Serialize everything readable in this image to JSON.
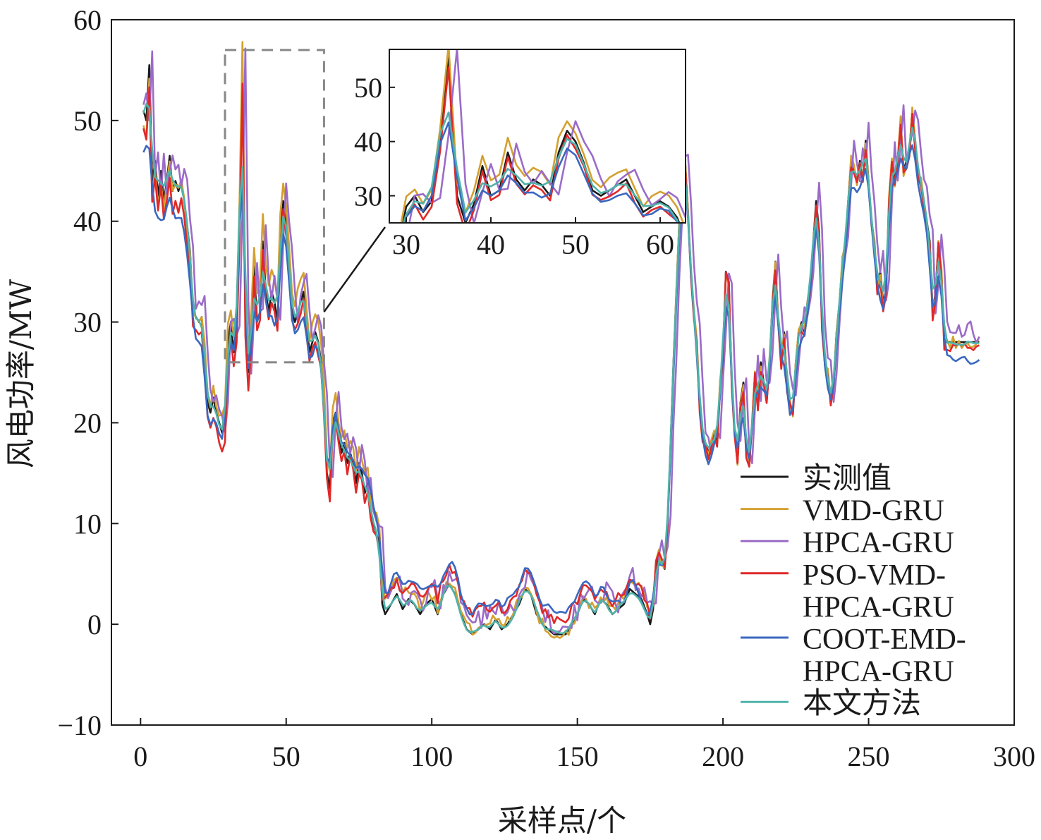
{
  "chart_data": {
    "type": "line",
    "xlabel": "采样点/个",
    "ylabel": "风电功率/MW",
    "xlim": [
      -10,
      300
    ],
    "ylim": [
      -10,
      60
    ],
    "xticks": [
      0,
      50,
      100,
      150,
      200,
      250,
      300
    ],
    "xtick_labels": [
      "0",
      "50",
      "100",
      "150",
      "200",
      "250",
      "300"
    ],
    "yticks": [
      -10,
      0,
      10,
      20,
      30,
      40,
      50,
      60
    ],
    "ytick_labels": [
      "−10",
      "0",
      "10",
      "20",
      "30",
      "40",
      "50",
      "60"
    ],
    "grid": false,
    "legend_position": "lower-right",
    "zoom_region": {
      "x": [
        29,
        63
      ],
      "y": [
        26,
        57
      ]
    },
    "inset": {
      "xlim": [
        28,
        63
      ],
      "ylim": [
        25,
        57
      ],
      "xticks": [
        30,
        40,
        50,
        60
      ],
      "xtick_labels": [
        "30",
        "40",
        "50",
        "60"
      ],
      "yticks": [
        30,
        40,
        50
      ],
      "ytick_labels": [
        "30",
        "40",
        "50"
      ]
    },
    "x_start": 1,
    "x_end": 288,
    "measured": [
      [
        1,
        51
      ],
      [
        2,
        50
      ],
      [
        3,
        55.5
      ],
      [
        4,
        44
      ],
      [
        5,
        46
      ],
      [
        6,
        42.5
      ],
      [
        7,
        45
      ],
      [
        8,
        42
      ],
      [
        9,
        44
      ],
      [
        10,
        46.5
      ],
      [
        11,
        43
      ],
      [
        12,
        44
      ],
      [
        13,
        43
      ],
      [
        14,
        44
      ],
      [
        15,
        42
      ],
      [
        17,
        37
      ],
      [
        18,
        31
      ],
      [
        20,
        30
      ],
      [
        21,
        30.5
      ],
      [
        22,
        27
      ],
      [
        23,
        22
      ],
      [
        24,
        21
      ],
      [
        25,
        22.5
      ],
      [
        26,
        21
      ],
      [
        27,
        20
      ],
      [
        28,
        19
      ],
      [
        29,
        20
      ],
      [
        30,
        28
      ],
      [
        31,
        30
      ],
      [
        32,
        27
      ],
      [
        33,
        29
      ],
      [
        34,
        40
      ],
      [
        35,
        55.5
      ],
      [
        36,
        30
      ],
      [
        37,
        25
      ],
      [
        38,
        28.5
      ],
      [
        39,
        35.5
      ],
      [
        40,
        30
      ],
      [
        41,
        31
      ],
      [
        42,
        38
      ],
      [
        43,
        33
      ],
      [
        44,
        31
      ],
      [
        45,
        33
      ],
      [
        46,
        32
      ],
      [
        47,
        30
      ],
      [
        48,
        38
      ],
      [
        49,
        42
      ],
      [
        50,
        40
      ],
      [
        51,
        36
      ],
      [
        52,
        31
      ],
      [
        53,
        30
      ],
      [
        54,
        31
      ],
      [
        55,
        32
      ],
      [
        56,
        33
      ],
      [
        57,
        30
      ],
      [
        58,
        27
      ],
      [
        59,
        28
      ],
      [
        60,
        29
      ],
      [
        61,
        28
      ],
      [
        62,
        26
      ],
      [
        63,
        22
      ],
      [
        64,
        15
      ],
      [
        65,
        13.5
      ],
      [
        66,
        20
      ],
      [
        67,
        21
      ],
      [
        68,
        19
      ],
      [
        69,
        17
      ],
      [
        70,
        18
      ],
      [
        71,
        16
      ],
      [
        72,
        17
      ],
      [
        73,
        16
      ],
      [
        74,
        14
      ],
      [
        75,
        16
      ],
      [
        76,
        15
      ],
      [
        77,
        13
      ],
      [
        78,
        14
      ],
      [
        79,
        11
      ],
      [
        80,
        10
      ],
      [
        82,
        8
      ],
      [
        83,
        2
      ],
      [
        84,
        1
      ],
      [
        86,
        2
      ],
      [
        88,
        3
      ],
      [
        90,
        1.5
      ],
      [
        92,
        2.5
      ],
      [
        94,
        2
      ],
      [
        96,
        1
      ],
      [
        98,
        2
      ],
      [
        100,
        2.5
      ],
      [
        102,
        1
      ],
      [
        104,
        3
      ],
      [
        106,
        4
      ],
      [
        108,
        3
      ],
      [
        110,
        1
      ],
      [
        112,
        -0.5
      ],
      [
        114,
        -1
      ],
      [
        116,
        -0.5
      ],
      [
        118,
        0
      ],
      [
        120,
        -0.5
      ],
      [
        122,
        0.5
      ],
      [
        124,
        -0.5
      ],
      [
        126,
        0
      ],
      [
        128,
        1
      ],
      [
        130,
        2
      ],
      [
        132,
        3.5
      ],
      [
        134,
        3
      ],
      [
        136,
        1
      ],
      [
        138,
        0
      ],
      [
        140,
        -0.5
      ],
      [
        142,
        -1
      ],
      [
        144,
        -1
      ],
      [
        146,
        -1
      ],
      [
        148,
        0
      ],
      [
        150,
        1
      ],
      [
        152,
        2.5
      ],
      [
        154,
        2
      ],
      [
        156,
        1
      ],
      [
        158,
        2.5
      ],
      [
        160,
        2
      ],
      [
        162,
        1
      ],
      [
        164,
        1.5
      ],
      [
        166,
        2
      ],
      [
        168,
        3.5
      ],
      [
        170,
        3
      ],
      [
        172,
        2.5
      ],
      [
        174,
        1
      ],
      [
        175,
        0
      ],
      [
        176,
        1.5
      ],
      [
        177,
        5.5
      ],
      [
        178,
        7
      ],
      [
        179,
        6
      ],
      [
        180,
        5.5
      ],
      [
        181,
        10
      ],
      [
        182,
        18
      ],
      [
        183,
        26
      ],
      [
        184,
        33
      ],
      [
        185,
        40
      ],
      [
        186,
        45
      ],
      [
        187,
        46
      ],
      [
        188,
        41
      ],
      [
        189,
        35
      ],
      [
        190,
        31
      ],
      [
        191,
        28
      ],
      [
        192,
        22
      ],
      [
        193,
        19
      ],
      [
        194,
        18
      ],
      [
        195,
        17
      ],
      [
        196,
        18
      ],
      [
        197,
        19
      ],
      [
        198,
        18
      ],
      [
        199,
        24
      ],
      [
        200,
        27
      ],
      [
        201,
        35
      ],
      [
        202,
        34
      ],
      [
        203,
        24
      ],
      [
        204,
        19
      ],
      [
        205,
        16
      ],
      [
        206,
        22
      ],
      [
        207,
        24
      ],
      [
        208,
        17
      ],
      [
        209,
        16
      ],
      [
        210,
        20
      ],
      [
        211,
        25
      ],
      [
        212,
        22
      ],
      [
        213,
        26
      ],
      [
        214,
        24
      ],
      [
        215,
        22
      ],
      [
        216,
        26
      ],
      [
        217,
        32
      ],
      [
        218,
        36
      ],
      [
        219,
        30
      ],
      [
        220,
        26
      ],
      [
        221,
        29
      ],
      [
        222,
        24
      ],
      [
        223,
        22
      ],
      [
        224,
        21
      ],
      [
        225,
        26
      ],
      [
        226,
        29
      ],
      [
        227,
        30
      ],
      [
        228,
        29
      ],
      [
        229,
        32
      ],
      [
        230,
        34
      ],
      [
        231,
        38
      ],
      [
        232,
        42
      ],
      [
        233,
        39
      ],
      [
        234,
        30
      ],
      [
        235,
        26
      ],
      [
        236,
        25
      ],
      [
        237,
        22
      ],
      [
        238,
        24
      ],
      [
        239,
        29
      ],
      [
        240,
        32
      ],
      [
        241,
        36
      ],
      [
        242,
        38
      ],
      [
        243,
        42
      ],
      [
        244,
        46
      ],
      [
        245,
        45
      ],
      [
        246,
        44
      ],
      [
        247,
        46
      ],
      [
        248,
        44
      ],
      [
        249,
        48
      ],
      [
        250,
        44
      ],
      [
        251,
        40
      ],
      [
        252,
        38
      ],
      [
        253,
        33
      ],
      [
        254,
        35
      ],
      [
        255,
        32
      ],
      [
        256,
        33
      ],
      [
        257,
        42
      ],
      [
        258,
        46
      ],
      [
        259,
        44
      ],
      [
        260,
        46
      ],
      [
        261,
        50
      ],
      [
        262,
        45
      ],
      [
        263,
        46
      ],
      [
        264,
        47
      ],
      [
        265,
        51
      ],
      [
        266,
        48
      ],
      [
        267,
        45
      ],
      [
        268,
        44
      ],
      [
        269,
        42
      ],
      [
        270,
        40
      ],
      [
        271,
        38
      ],
      [
        272,
        31
      ],
      [
        273,
        33
      ],
      [
        274,
        38
      ],
      [
        275,
        35
      ],
      [
        276,
        28
      ]
    ],
    "series": [
      {
        "name": "实测值",
        "color": "#1a1a1a",
        "offset": [
          [
            1,
            0
          ]
        ],
        "jitter": 0
      },
      {
        "name": "VMD-GRU",
        "color": "#d4a030",
        "offset": [
          [
            1,
            -1.5
          ],
          [
            40,
            2.5
          ],
          [
            52,
            2
          ],
          [
            60,
            1.5
          ],
          [
            70,
            1.5
          ],
          [
            80,
            1.5
          ],
          [
            84,
            2
          ],
          [
            100,
            0.5
          ],
          [
            114,
            0.5
          ],
          [
            150,
            0
          ],
          [
            175,
            1
          ],
          [
            182,
            0
          ],
          [
            288,
            0
          ]
        ],
        "jitter": 0.6
      },
      {
        "name": "HPCA-GRU",
        "color": "#9b6bc8",
        "offset": [
          [
            1,
            1
          ],
          [
            288,
            1
          ]
        ],
        "jitter": 1.2,
        "lag": 1
      },
      {
        "name": "PSO-VMD-HPCA-GRU",
        "color": "#e02828",
        "offset": [
          [
            1,
            -2
          ],
          [
            82,
            -0.5
          ],
          [
            84,
            1.5
          ],
          [
            100,
            1.5
          ],
          [
            112,
            2
          ],
          [
            175,
            1
          ],
          [
            182,
            -0.5
          ],
          [
            288,
            -0.5
          ]
        ],
        "jitter": 0.5
      },
      {
        "name": "COOT-EMD-HPCA-GRU",
        "color": "#3a68c0",
        "offset": [
          [
            1,
            -4
          ],
          [
            30,
            -1
          ],
          [
            56,
            -2
          ],
          [
            62,
            0
          ],
          [
            84,
            2
          ],
          [
            100,
            2
          ],
          [
            112,
            2
          ],
          [
            140,
            2
          ],
          [
            175,
            0.5
          ],
          [
            182,
            -1
          ],
          [
            288,
            -1.5
          ]
        ],
        "jitter": 0.9,
        "smooth": true
      },
      {
        "name": "本文方法",
        "color": "#4fb3aa",
        "offset": [
          [
            1,
            0
          ]
        ],
        "jitter": 0.4,
        "smooth": true
      }
    ]
  }
}
